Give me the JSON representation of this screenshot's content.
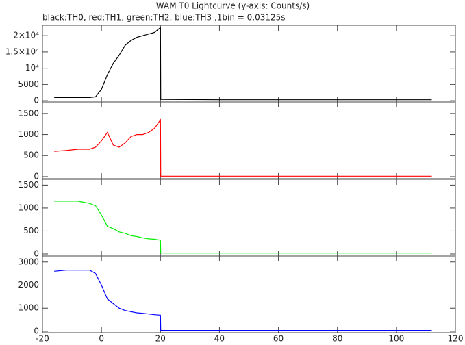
{
  "chart_data": [
    {
      "type": "line",
      "title": "WAM T0 Lightcurve (y-axis: Counts/s)",
      "subtitle": "black:TH0, red:TH1, green:TH2, blue:TH3 ,1bin = 0.03125s",
      "x": [
        -16,
        -12,
        -8,
        -4,
        -2,
        0,
        2,
        4,
        6,
        8,
        10,
        12,
        14,
        16,
        18,
        20,
        20.1,
        40,
        60,
        80,
        100,
        112
      ],
      "series": [
        {
          "name": "TH0",
          "color": "#000000",
          "values": [
            1000,
            1000,
            1000,
            1000,
            1200,
            3500,
            8000,
            11500,
            14000,
            17000,
            18500,
            19500,
            20000,
            20500,
            21000,
            22500,
            400,
            300,
            300,
            300,
            300,
            300
          ]
        }
      ],
      "xlim": [
        -20,
        120
      ],
      "ylim": [
        -400,
        23200
      ],
      "yticks": [
        0,
        5000,
        {
          "value": 10000,
          "label": "10⁴"
        },
        {
          "value": 15000,
          "label": "1.5×10⁴"
        },
        {
          "value": 20000,
          "label": "2×10⁴"
        }
      ]
    },
    {
      "type": "line",
      "x": [
        -16,
        -12,
        -8,
        -4,
        -2,
        0,
        2,
        4,
        6,
        8,
        10,
        12,
        14,
        16,
        18,
        20,
        20.1,
        40,
        60,
        80,
        100,
        112
      ],
      "series": [
        {
          "name": "TH1",
          "color": "#ff0000",
          "values": [
            600,
            620,
            650,
            650,
            700,
            850,
            1050,
            750,
            700,
            800,
            950,
            1000,
            1000,
            1050,
            1150,
            1350,
            10,
            10,
            10,
            10,
            10,
            10
          ]
        }
      ],
      "xlim": [
        -20,
        120
      ],
      "ylim": [
        -50,
        1775
      ],
      "yticks": [
        0,
        500,
        1000,
        1500
      ]
    },
    {
      "type": "line",
      "x": [
        -16,
        -12,
        -8,
        -4,
        -2,
        0,
        2,
        4,
        6,
        8,
        10,
        12,
        14,
        16,
        18,
        20,
        20.1,
        40,
        60,
        80,
        100,
        112
      ],
      "series": [
        {
          "name": "TH2",
          "color": "#00ee00",
          "values": [
            1150,
            1150,
            1150,
            1100,
            1050,
            850,
            600,
            550,
            480,
            450,
            400,
            380,
            350,
            330,
            320,
            300,
            20,
            20,
            20,
            20,
            20,
            20
          ]
        }
      ],
      "xlim": [
        -20,
        120
      ],
      "ylim": [
        -45,
        1625
      ],
      "yticks": [
        0,
        500,
        1000,
        1500
      ]
    },
    {
      "type": "line",
      "x": [
        -16,
        -12,
        -8,
        -4,
        -2,
        0,
        2,
        4,
        6,
        8,
        10,
        12,
        14,
        16,
        18,
        20,
        20.1,
        40,
        60,
        80,
        100,
        112
      ],
      "series": [
        {
          "name": "TH3",
          "color": "#0000ff",
          "values": [
            2600,
            2650,
            2650,
            2650,
            2500,
            2000,
            1400,
            1200,
            1000,
            900,
            850,
            800,
            780,
            750,
            720,
            700,
            40,
            40,
            40,
            40,
            40,
            40
          ]
        }
      ],
      "xlim": [
        -20,
        120
      ],
      "ylim": [
        -60,
        3260
      ],
      "yticks": [
        0,
        1000,
        2000,
        3000
      ],
      "xticks": [
        -20,
        0,
        20,
        40,
        60,
        80,
        100,
        120
      ]
    }
  ]
}
